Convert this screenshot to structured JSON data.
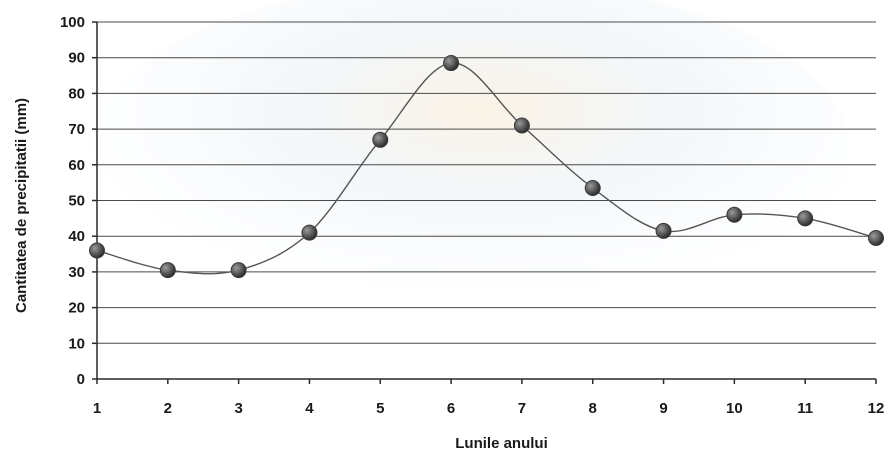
{
  "chart_data": {
    "type": "line",
    "xlabel": "Lunile anului",
    "ylabel": "Cantitatea de precipitatii (mm)",
    "categories": [
      "1",
      "2",
      "3",
      "4",
      "5",
      "6",
      "7",
      "8",
      "9",
      "10",
      "11",
      "12"
    ],
    "yticks": [
      "0",
      "10",
      "20",
      "30",
      "40",
      "50",
      "60",
      "70",
      "80",
      "90",
      "100"
    ],
    "ylim": [
      0,
      100
    ],
    "grid": true,
    "smooth": true,
    "series": [
      {
        "values": [
          36,
          30.5,
          30.5,
          41,
          67,
          88.5,
          71,
          53.5,
          41.5,
          46,
          45,
          39.5
        ]
      }
    ],
    "colors": {
      "line": "#555555",
      "marker": "#3a3a3a",
      "grid": "#4a4a4a"
    }
  }
}
